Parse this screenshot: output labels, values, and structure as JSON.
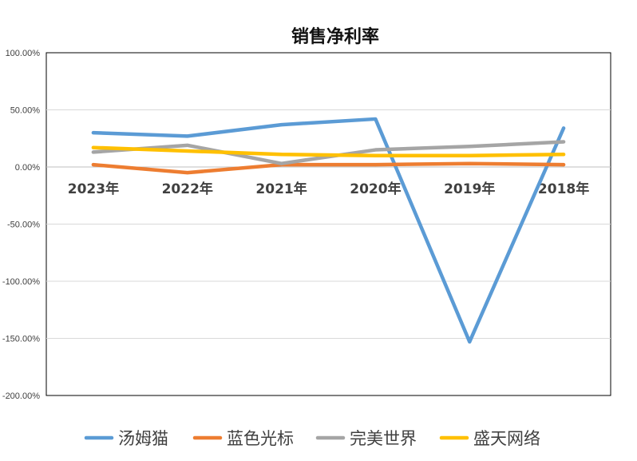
{
  "chart_data": {
    "type": "line",
    "title": "销售净利率",
    "categories": [
      "2023年",
      "2022年",
      "2021年",
      "2020年",
      "2019年",
      "2018年"
    ],
    "y_ticks": [
      "100.00%",
      "50.00%",
      "0.00%",
      "-50.00%",
      "-100.00%",
      "-150.00%",
      "-200.00%"
    ],
    "ylim": [
      -200,
      100
    ],
    "unit": "%",
    "grid": true,
    "legend_position": "bottom",
    "series": [
      {
        "name": "汤姆猫",
        "color": "#5B9BD5",
        "values": [
          30,
          27,
          37,
          42,
          -153,
          34
        ]
      },
      {
        "name": "蓝色光标",
        "color": "#ED7D31",
        "values": [
          2,
          -5,
          2,
          2,
          3,
          2
        ]
      },
      {
        "name": "完美世界",
        "color": "#A5A5A5",
        "values": [
          13,
          19,
          3,
          15,
          18,
          22
        ]
      },
      {
        "name": "盛天网络",
        "color": "#FFC000",
        "values": [
          17,
          14,
          11,
          10,
          10,
          11
        ]
      }
    ]
  }
}
